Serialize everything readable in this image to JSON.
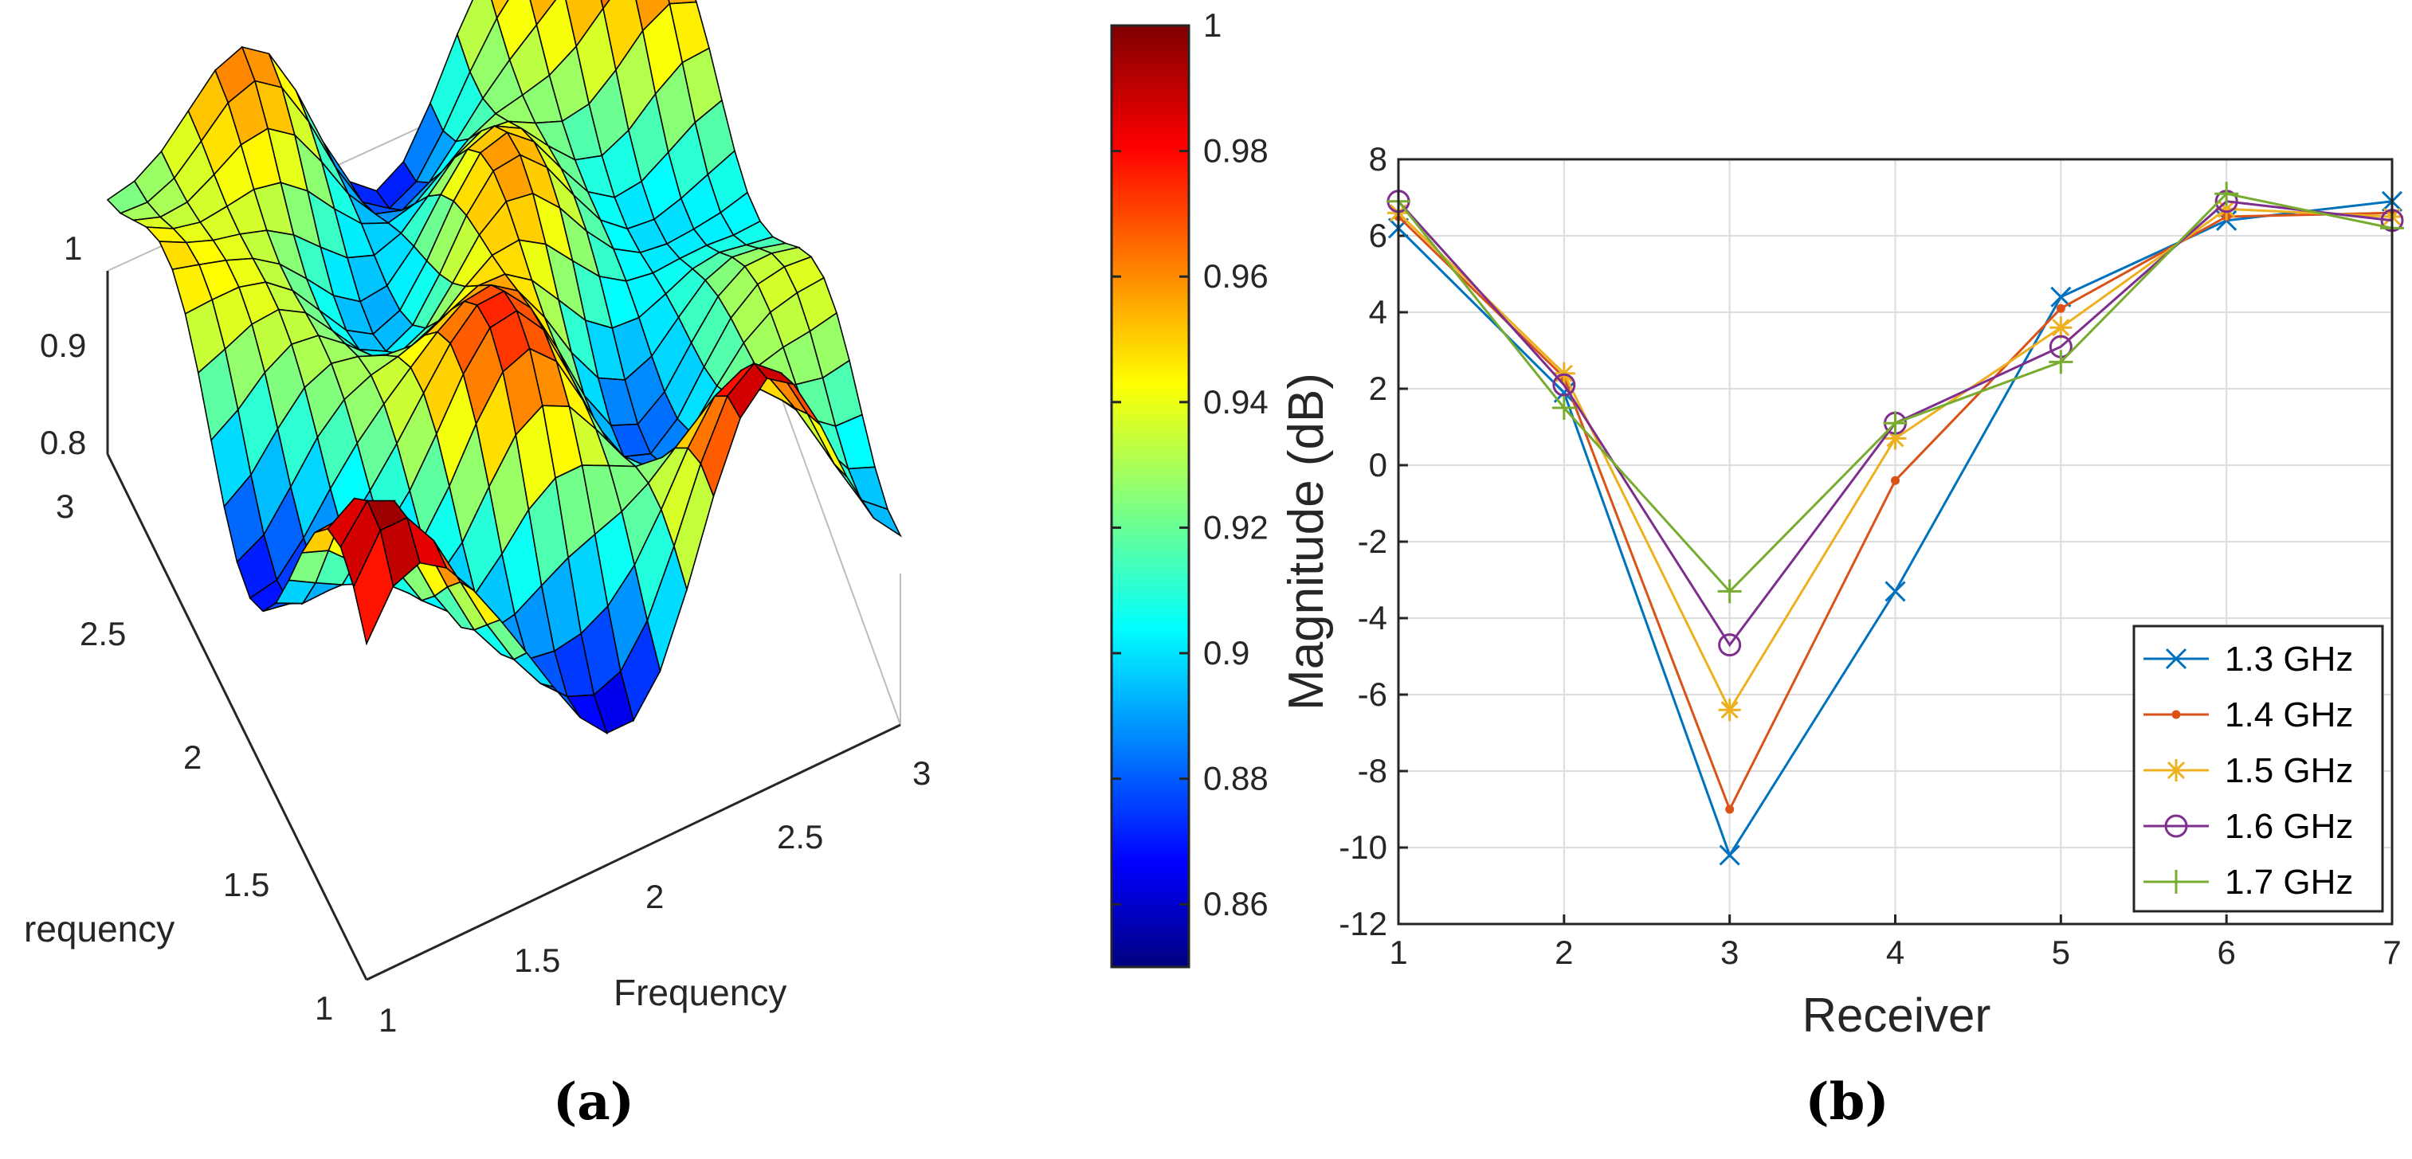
{
  "panel_labels": {
    "a": "(a)",
    "b": "(b)"
  },
  "chart_data": [
    {
      "type": "surface",
      "panel": "(a)",
      "xlabel": "Frequency",
      "ylabel": "requency",
      "x_ticks": [
        "1",
        "1.5",
        "2",
        "2.5",
        "3"
      ],
      "y_ticks": [
        "1",
        "1.5",
        "2",
        "2.5",
        "3"
      ],
      "z_ticks": [
        "0.8",
        "0.9",
        "1"
      ],
      "xlim": [
        1,
        3
      ],
      "ylim": [
        1,
        3
      ],
      "zlim": [
        0.8,
        1
      ],
      "colormap": "jet",
      "colorbar": {
        "ticks": [
          "0.86",
          "0.88",
          "0.9",
          "0.92",
          "0.94",
          "0.96",
          "0.98",
          "1"
        ],
        "clim": [
          0.85,
          1
        ]
      }
    },
    {
      "type": "line",
      "panel": "(b)",
      "xlabel": "Receiver",
      "ylabel": "Magnitude (dB)",
      "x": [
        1,
        2,
        3,
        4,
        5,
        6,
        7
      ],
      "xlim": [
        1,
        7
      ],
      "ylim": [
        -12,
        8
      ],
      "x_ticks": [
        "1",
        "2",
        "3",
        "4",
        "5",
        "6",
        "7"
      ],
      "y_ticks": [
        "-12",
        "-10",
        "-8",
        "-6",
        "-4",
        "-2",
        "0",
        "2",
        "4",
        "6",
        "8"
      ],
      "grid": true,
      "legend_position": "bottom-right",
      "series": [
        {
          "name": "1.3 GHz",
          "color": "#0072BD",
          "marker": "x",
          "values": [
            6.2,
            1.9,
            -10.2,
            -3.3,
            4.4,
            6.4,
            6.9
          ]
        },
        {
          "name": "1.4 GHz",
          "color": "#D95319",
          "marker": "dot",
          "values": [
            6.5,
            2.3,
            -9.0,
            -0.4,
            4.1,
            6.5,
            6.6
          ]
        },
        {
          "name": "1.5 GHz",
          "color": "#EDB120",
          "marker": "star",
          "values": [
            6.6,
            2.4,
            -6.4,
            0.7,
            3.6,
            6.7,
            6.5
          ]
        },
        {
          "name": "1.6 GHz",
          "color": "#7E2F8E",
          "marker": "circle",
          "values": [
            6.9,
            2.1,
            -4.7,
            1.1,
            3.1,
            6.9,
            6.4
          ]
        },
        {
          "name": "1.7 GHz",
          "color": "#77AC30",
          "marker": "plus",
          "values": [
            6.9,
            1.5,
            -3.3,
            1.1,
            2.7,
            7.1,
            6.2
          ]
        }
      ]
    }
  ]
}
